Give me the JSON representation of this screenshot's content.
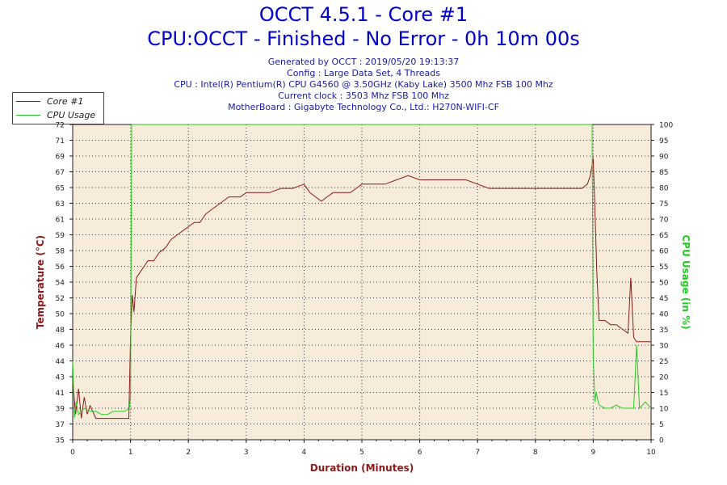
{
  "header": {
    "title": "OCCT 4.5.1 - Core #1",
    "subtitle": "CPU:OCCT - Finished - No Error - 0h 10m 00s",
    "info_lines": [
      "Generated by OCCT : 2019/05/20 19:13:37",
      "Config : Large Data Set, 4 Threads",
      "CPU : Intel(R) Pentium(R) CPU G4560 @ 3.50GHz (Kaby Lake) 3500 Mhz FSB 100 Mhz",
      "Current clock : 3503 Mhz FSB 100 Mhz",
      "MotherBoard : Gigabyte Technology Co., Ltd.: H270N-WIFI-CF"
    ]
  },
  "colors": {
    "temperature": "#8b1a1a",
    "cpu_usage": "#22cc22",
    "plot_background": "#f7ebd9",
    "title": "#0000cc"
  },
  "chart_data": {
    "type": "line",
    "xlabel": "Duration (Minutes)",
    "ylabel_left": "Temperature (°C)",
    "ylabel_right": "CPU Usage (in %)",
    "xlim": [
      0,
      10
    ],
    "ylim_left": [
      35,
      72
    ],
    "ylim_right": [
      0,
      100
    ],
    "x_ticks": [
      0,
      1,
      2,
      3,
      4,
      5,
      6,
      7,
      8,
      9,
      10
    ],
    "y_ticks_left": [
      35,
      37,
      39,
      41,
      43,
      44,
      46,
      48,
      50,
      52,
      54,
      56,
      58,
      59,
      61,
      63,
      65,
      67,
      69,
      71,
      72
    ],
    "y_ticks_right": [
      0,
      5,
      10,
      15,
      20,
      25,
      30,
      35,
      40,
      45,
      50,
      55,
      60,
      65,
      70,
      75,
      80,
      85,
      90,
      95,
      100
    ],
    "grid": true,
    "legend_position": "top-left",
    "series": [
      {
        "name": "Core #1",
        "axis": "left",
        "x": [
          0,
          0.05,
          0.1,
          0.15,
          0.2,
          0.25,
          0.3,
          0.4,
          0.5,
          0.6,
          0.7,
          0.8,
          0.9,
          0.97,
          1.0,
          1.03,
          1.06,
          1.1,
          1.2,
          1.3,
          1.4,
          1.5,
          1.6,
          1.7,
          1.8,
          1.9,
          2.0,
          2.1,
          2.2,
          2.3,
          2.4,
          2.5,
          2.6,
          2.7,
          2.8,
          2.9,
          3.0,
          3.2,
          3.4,
          3.6,
          3.8,
          4.0,
          4.1,
          4.2,
          4.3,
          4.4,
          4.5,
          4.6,
          4.7,
          4.8,
          4.9,
          5.0,
          5.2,
          5.4,
          5.6,
          5.8,
          6.0,
          6.2,
          6.4,
          6.6,
          6.8,
          7.0,
          7.2,
          7.4,
          7.6,
          7.8,
          8.0,
          8.2,
          8.4,
          8.6,
          8.8,
          8.9,
          8.95,
          9.0,
          9.03,
          9.06,
          9.1,
          9.2,
          9.3,
          9.4,
          9.5,
          9.6,
          9.65,
          9.7,
          9.75,
          9.8,
          9.9,
          10.0
        ],
        "values": [
          42,
          38,
          41,
          37.5,
          40,
          38,
          39,
          37.5,
          37.5,
          37.5,
          37.5,
          37.5,
          37.5,
          37.5,
          47,
          52,
          50,
          54,
          55,
          56,
          56,
          57,
          57.5,
          58.5,
          59,
          59.5,
          60,
          60.5,
          60.5,
          61.5,
          62,
          62.5,
          63,
          63.5,
          63.5,
          63.5,
          64,
          64,
          64,
          64.5,
          64.5,
          65,
          64,
          63.5,
          63,
          63.5,
          64,
          64,
          64,
          64,
          64.5,
          65,
          65,
          65,
          65.5,
          66,
          65.5,
          65.5,
          65.5,
          65.5,
          65.5,
          65,
          64.5,
          64.5,
          64.5,
          64.5,
          64.5,
          64.5,
          64.5,
          64.5,
          64.5,
          65,
          66,
          68,
          62,
          55,
          49,
          49,
          48.5,
          48.5,
          48,
          47.5,
          54,
          47,
          46.5,
          46.5,
          46.5,
          46.5
        ]
      },
      {
        "name": "CPU Usage",
        "axis": "right",
        "x": [
          0,
          0.03,
          0.06,
          0.1,
          0.2,
          0.3,
          0.4,
          0.5,
          0.6,
          0.7,
          0.8,
          0.9,
          0.98,
          1.0,
          1.02,
          2.0,
          3.0,
          4.0,
          5.0,
          6.0,
          7.0,
          8.0,
          8.98,
          9.0,
          9.03,
          9.05,
          9.1,
          9.2,
          9.3,
          9.4,
          9.5,
          9.6,
          9.7,
          9.75,
          9.8,
          9.85,
          9.9,
          10.0
        ],
        "values": [
          25,
          7,
          12,
          8,
          10,
          9,
          9,
          8,
          8,
          9,
          9,
          9,
          10,
          14,
          100,
          100,
          100,
          100,
          100,
          100,
          100,
          100,
          100,
          26,
          12,
          15,
          11,
          10,
          10,
          11,
          10,
          10,
          10,
          30,
          10,
          11,
          12,
          10
        ]
      }
    ]
  }
}
